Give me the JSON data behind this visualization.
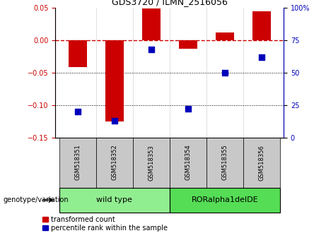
{
  "title": "GDS3720 / ILMN_2516056",
  "samples": [
    "GSM518351",
    "GSM518352",
    "GSM518353",
    "GSM518354",
    "GSM518355",
    "GSM518356"
  ],
  "red_bars": [
    -0.042,
    -0.125,
    0.048,
    -0.013,
    0.012,
    0.044
  ],
  "blue_dots_pct": [
    20,
    13,
    68,
    22,
    50,
    62
  ],
  "ylim_left": [
    -0.15,
    0.05
  ],
  "ylim_right": [
    0,
    100
  ],
  "left_ticks": [
    0.05,
    0,
    -0.05,
    -0.1,
    -0.15
  ],
  "right_ticks": [
    100,
    75,
    50,
    25,
    0
  ],
  "genotype_groups": [
    {
      "label": "wild type",
      "start": 0,
      "end": 3,
      "color": "#90EE90"
    },
    {
      "label": "RORalpha1delDE",
      "start": 3,
      "end": 6,
      "color": "#55DD55"
    }
  ],
  "legend_red": "transformed count",
  "legend_blue": "percentile rank within the sample",
  "red_color": "#CC0000",
  "blue_color": "#0000BB",
  "hline_color": "#CC0000",
  "dot_line_color": "black",
  "bg_plot": "white",
  "tick_label_color_left": "#CC0000",
  "tick_label_color_right": "#0000BB",
  "bar_width": 0.5,
  "dot_size": 40,
  "sample_box_color": "#C8C8C8",
  "geno_label_fontsize": 7,
  "tick_fontsize": 7,
  "title_fontsize": 9
}
